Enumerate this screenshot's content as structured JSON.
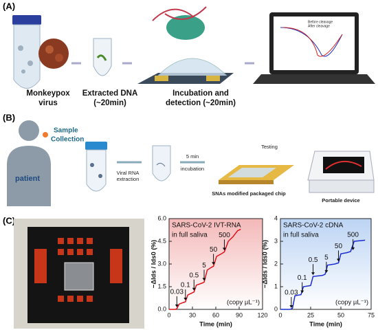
{
  "panels": {
    "a": {
      "label": "(A)",
      "steps": [
        {
          "lines": [
            "Monkeypox",
            "virus"
          ]
        },
        {
          "lines": [
            "Extracted DNA",
            "(~20min)"
          ]
        },
        {
          "lines": [
            "Incubation and",
            "detection (~20min)"
          ]
        }
      ],
      "laptop_legend": [
        "Before cleavage",
        "After cleavage"
      ]
    },
    "b": {
      "label": "(B)",
      "patient": "patient",
      "sample": [
        "Sample",
        "Collection"
      ],
      "extraction": [
        "Viral RNA",
        "extraction"
      ],
      "incubation": [
        "5 min",
        "incubation"
      ],
      "testing": "Testing",
      "chip": "SNAs modified packaged chip",
      "device": "Portable device"
    },
    "c": {
      "label": "(C)"
    }
  },
  "chart_data": [
    {
      "type": "line",
      "title": "SARS-CoV-2 IVT-RNA",
      "subtitle": "in full saliva",
      "note": "(copy µL⁻¹)",
      "xlabel": "Time (min)",
      "ylabel": "−ΔIds / Ids0 (%)",
      "x": [
        0,
        8,
        10,
        13,
        18,
        21,
        24,
        30,
        32,
        35,
        43,
        45,
        49,
        55,
        57,
        61,
        68,
        71,
        76,
        82,
        88,
        92
      ],
      "series": [
        {
          "name": "IVT-RNA",
          "color": "#e0101a",
          "values": [
            0,
            0,
            0.05,
            0.35,
            0.45,
            0.5,
            0.95,
            1.1,
            1.15,
            1.6,
            1.75,
            1.8,
            2.6,
            2.8,
            2.85,
            3.5,
            3.7,
            3.8,
            4.5,
            4.8,
            5.2,
            5.3
          ]
        }
      ],
      "annotations": [
        {
          "text": "0.03",
          "x": 10
        },
        {
          "text": "0.1",
          "x": 21
        },
        {
          "text": "0.5",
          "x": 32
        },
        {
          "text": "5",
          "x": 45
        },
        {
          "text": "50",
          "x": 57
        },
        {
          "text": "500",
          "x": 71
        }
      ],
      "xlim": [
        0,
        120
      ],
      "xticks": [
        0,
        30,
        60,
        90,
        120
      ],
      "ylim": [
        0,
        6
      ],
      "yticks": [
        {
          "value": 0,
          "label": "0.0"
        },
        {
          "value": 1.5,
          "label": "1.5"
        },
        {
          "value": 3,
          "label": "3.0"
        },
        {
          "value": 4.5,
          "label": "4.5"
        },
        {
          "value": 6,
          "label": "6.0"
        }
      ],
      "background": "#f4b8b8"
    },
    {
      "type": "line",
      "title": "SARS-CoV-2 cDNA",
      "subtitle": "in full saliva",
      "note": "(copy µL⁻¹)",
      "xlabel": "Time (min)",
      "ylabel": "−ΔIds / Ids0 (%)",
      "x": [
        0,
        8,
        10,
        12,
        17,
        19,
        25,
        27,
        35,
        37,
        39,
        45,
        48,
        50,
        55,
        58,
        61,
        70
      ],
      "series": [
        {
          "name": "cDNA",
          "color": "#1a2bd0",
          "values": [
            0,
            0,
            0.05,
            0.6,
            0.65,
            1.0,
            1.05,
            1.45,
            1.5,
            1.55,
            1.95,
            2.0,
            2.05,
            2.45,
            2.5,
            2.55,
            3.0,
            3.05
          ]
        }
      ],
      "annotations": [
        {
          "text": "0.03",
          "x": 9
        },
        {
          "text": "0.1",
          "x": 18
        },
        {
          "text": "0.5",
          "x": 27
        },
        {
          "text": "5",
          "x": 38
        },
        {
          "text": "50",
          "x": 48
        },
        {
          "text": "500",
          "x": 60
        }
      ],
      "xlim": [
        0,
        75
      ],
      "xticks": [
        0,
        25,
        50,
        75
      ],
      "ylim": [
        0,
        4
      ],
      "yticks": [
        0,
        1,
        2,
        3,
        4
      ],
      "background": "#bcd4f4"
    }
  ]
}
